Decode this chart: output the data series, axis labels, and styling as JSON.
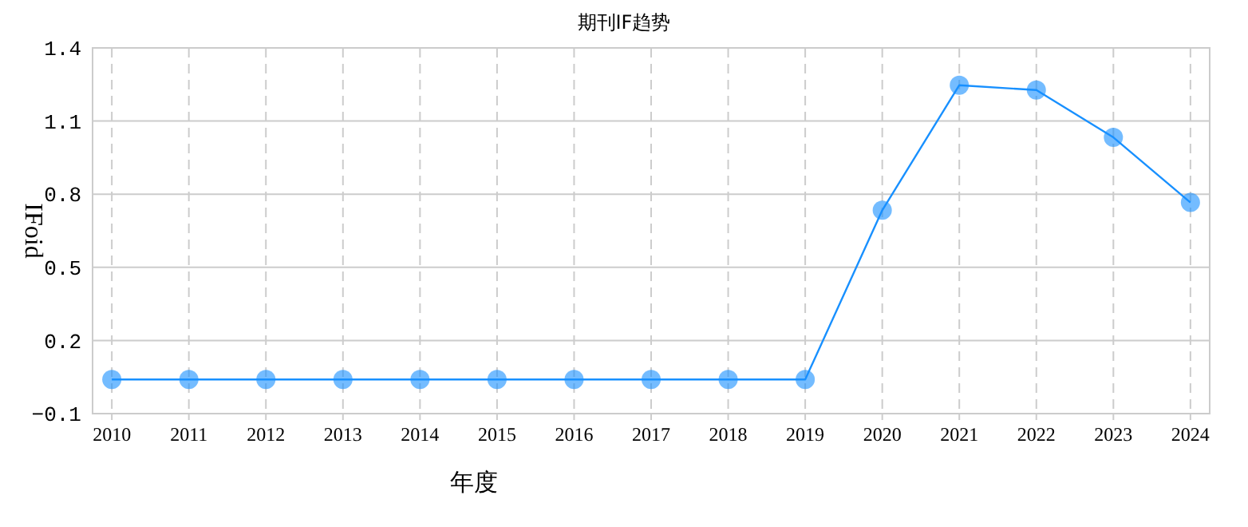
{
  "chart_data": {
    "type": "line",
    "title": "期刊IF趋势",
    "xlabel": "年度",
    "ylabel": "IFoid",
    "categories": [
      "2010",
      "2011",
      "2012",
      "2013",
      "2014",
      "2015",
      "2016",
      "2017",
      "2018",
      "2019",
      "2020",
      "2021",
      "2022",
      "2023",
      "2024"
    ],
    "series": [
      {
        "color": "#1890ff",
        "values": [
          0.04,
          0.04,
          0.04,
          0.04,
          0.04,
          0.04,
          0.04,
          0.04,
          0.04,
          0.04,
          0.734,
          1.247,
          1.227,
          1.033,
          0.766
        ]
      }
    ],
    "ylim": [
      -0.1,
      1.4
    ],
    "yticks": [
      -0.1,
      0.2,
      0.5,
      0.8,
      1.1,
      1.4
    ],
    "grid": true,
    "marker": "circle",
    "line_style": "solid"
  }
}
